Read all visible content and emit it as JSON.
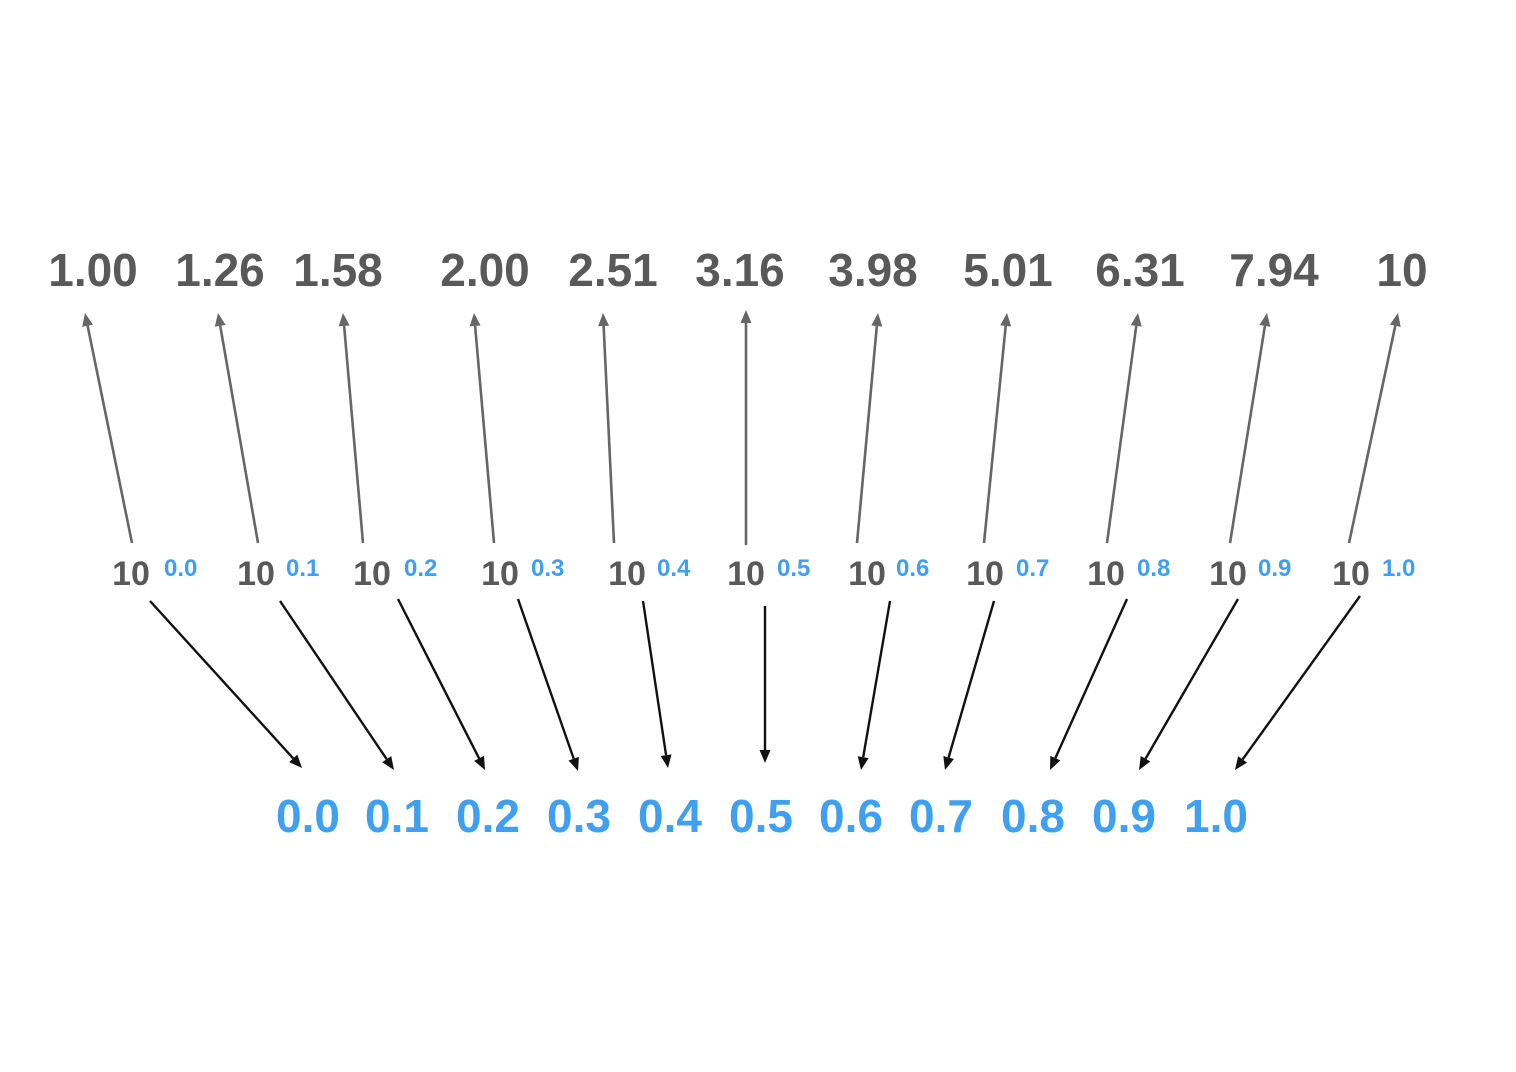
{
  "colors": {
    "gray_text": "#595959",
    "blue_text": "#3f9ff0",
    "up_arrow": "#666666",
    "down_arrow": "#111111",
    "background": "#ffffff"
  },
  "top_values": [
    "1.00",
    "1.26",
    "1.58",
    "2.00",
    "2.51",
    "3.16",
    "3.98",
    "5.01",
    "6.31",
    "7.94",
    "10"
  ],
  "powers": [
    {
      "base": "10",
      "exponent": "0.0"
    },
    {
      "base": "10",
      "exponent": "0.1"
    },
    {
      "base": "10",
      "exponent": "0.2"
    },
    {
      "base": "10",
      "exponent": "0.3"
    },
    {
      "base": "10",
      "exponent": "0.4"
    },
    {
      "base": "10",
      "exponent": "0.5"
    },
    {
      "base": "10",
      "exponent": "0.6"
    },
    {
      "base": "10",
      "exponent": "0.7"
    },
    {
      "base": "10",
      "exponent": "0.8"
    },
    {
      "base": "10",
      "exponent": "0.9"
    },
    {
      "base": "10",
      "exponent": "1.0"
    }
  ],
  "bottom_values": [
    "0.0",
    "0.1",
    "0.2",
    "0.3",
    "0.4",
    "0.5",
    "0.6",
    "0.7",
    "0.8",
    "0.9",
    "1.0"
  ]
}
